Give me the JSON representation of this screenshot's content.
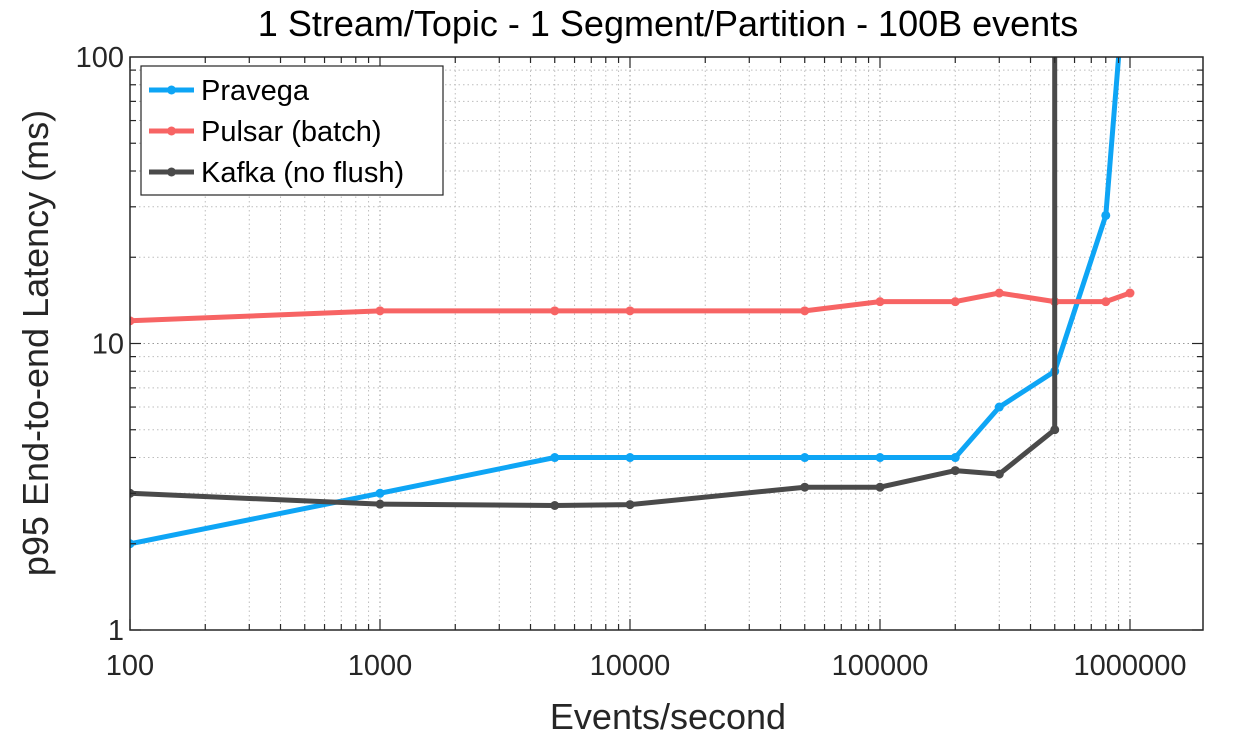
{
  "chart_data": {
    "type": "line",
    "title": "1 Stream/Topic - 1 Segment/Partition - 100B events",
    "xlabel": "Events/second",
    "ylabel": "p95 End-to-end Latency (ms)",
    "x_scale": "log",
    "y_scale": "log",
    "xlim": [
      100,
      2000000
    ],
    "ylim": [
      1,
      100
    ],
    "x_ticks": [
      "100",
      "1000",
      "10000",
      "100000",
      "1000000"
    ],
    "y_ticks": [
      "1",
      "10",
      "100"
    ],
    "grid": "on (major and minor)",
    "legend_position": "top-left",
    "series": [
      {
        "name": "Pravega",
        "color": "#0ea5f5",
        "x": [
          100,
          1000,
          5000,
          10000,
          50000,
          100000,
          200000,
          300000,
          500000,
          800000,
          900000
        ],
        "y": [
          2,
          3,
          4,
          4,
          4,
          4,
          4,
          6,
          8,
          28,
          100
        ]
      },
      {
        "name": "Pulsar (batch)",
        "color": "#f76464",
        "x": [
          100,
          1000,
          5000,
          10000,
          50000,
          100000,
          200000,
          300000,
          500000,
          800000,
          1000000
        ],
        "y": [
          12,
          13,
          13,
          13,
          13,
          14,
          14,
          15,
          14,
          14,
          15
        ]
      },
      {
        "name": "Kafka (no flush)",
        "color": "#4a4a4a",
        "x": [
          100,
          1000,
          5000,
          10000,
          50000,
          100000,
          200000,
          300000,
          500000,
          500000
        ],
        "y": [
          3,
          2.75,
          2.72,
          2.74,
          3.15,
          3.15,
          3.6,
          3.5,
          5,
          100
        ]
      }
    ]
  }
}
